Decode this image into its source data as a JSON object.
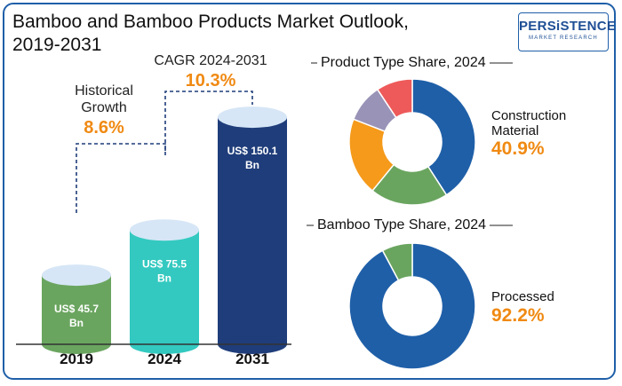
{
  "header": {
    "title_line1": "Bamboo and Bamboo Products Market Outlook,",
    "title_line2": "2019-2031"
  },
  "logo": {
    "main": "PERSiSTENCE",
    "sub": "MARKET RESEARCH"
  },
  "annotations": {
    "historical_label_line1": "Historical",
    "historical_label_line2": "Growth",
    "historical_value": "8.6%",
    "cagr_label": "CAGR 2024-2031",
    "cagr_value": "10.3%"
  },
  "colors": {
    "bar_2019": "#6aa55f",
    "bar_2024": "#33c9c0",
    "bar_2031": "#1f3d7a",
    "cap": "#d6e6f6",
    "accent": "#f08a13",
    "border": "#1f5fa8"
  },
  "chart_data": [
    {
      "type": "bar",
      "categories": [
        "2019",
        "2024",
        "2031"
      ],
      "values": [
        45.7,
        75.5,
        150.1
      ],
      "value_labels_line1": [
        "US$ 45.7",
        "US$ 75.5",
        "US$ 150.1"
      ],
      "value_labels_line2": [
        "Bn",
        "Bn",
        "Bn"
      ],
      "unit": "US$ Bn"
    },
    {
      "type": "pie",
      "title": "Product Type Share, 2024",
      "slices": [
        {
          "label": "Construction Material",
          "value": 40.9,
          "color": "#1f5fa8"
        },
        {
          "label": "",
          "value": 20.0,
          "color": "#6aa55f"
        },
        {
          "label": "",
          "value": 20.0,
          "color": "#f59a1b"
        },
        {
          "label": "",
          "value": 9.8,
          "color": "#9a93b8"
        },
        {
          "label": "",
          "value": 9.3,
          "color": "#ee5a5a"
        }
      ],
      "callout_line1": "Construction",
      "callout_line2": "Material",
      "callout_value": "40.9%"
    },
    {
      "type": "pie",
      "title": "Bamboo Type Share, 2024",
      "slices": [
        {
          "label": "Processed",
          "value": 92.2,
          "color": "#1f5fa8"
        },
        {
          "label": "",
          "value": 7.8,
          "color": "#6aa55f"
        }
      ],
      "callout_line1": "Processed",
      "callout_value": "92.2%"
    }
  ]
}
